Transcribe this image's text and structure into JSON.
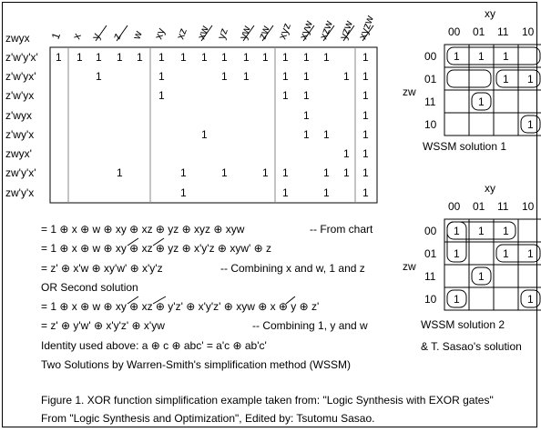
{
  "chart": {
    "corner_label": "zwyx",
    "columns": [
      "1",
      "x",
      "y",
      "z",
      "w",
      "xy",
      "xz",
      "xw",
      "yz",
      "yw",
      "zw",
      "xyz",
      "xyw",
      "xzw",
      "yzw",
      "xyzw"
    ],
    "struck_columns": [
      2,
      3,
      7,
      9,
      10,
      12,
      13,
      14,
      15
    ],
    "rows": [
      {
        "label": "z'w'y'x'",
        "cells": [
          0,
          1,
          2,
          3,
          4,
          5,
          6,
          7,
          8,
          9,
          10,
          11,
          12,
          13,
          15
        ]
      },
      {
        "label": "z'w'yx'",
        "cells": [
          2,
          5,
          8,
          9,
          11,
          12,
          14,
          15
        ]
      },
      {
        "label": "z'w'yx",
        "cells": [
          5,
          11,
          12,
          15
        ]
      },
      {
        "label": "z'wyx",
        "cells": [
          12,
          15
        ]
      },
      {
        "label": "z'wy'x",
        "cells": [
          7,
          12,
          13,
          15
        ]
      },
      {
        "label": "zwyx'",
        "cells": [
          14,
          15
        ]
      },
      {
        "label": "zw'y'x'",
        "cells": [
          3,
          6,
          8,
          10,
          11,
          13,
          14,
          15
        ]
      },
      {
        "label": "zw'y'x",
        "cells": [
          6,
          11,
          13,
          15
        ]
      }
    ],
    "cell_value": "1"
  },
  "lines": [
    {
      "text": "= 1 ⊕ x ⊕ w ⊕ xy ⊕ xz ⊕ yz ⊕ xyz ⊕ xyw",
      "note": "-- From chart"
    },
    {
      "text": "= 1 ⊕ x ⊕ w ⊕ xy ⊕ xz ⊕ yz ⊕ x'y'z ⊕ xyw' ⊕ z",
      "note": ""
    },
    {
      "text": "=  z' ⊕ x'w ⊕ xy'w' ⊕ x'y'z",
      "note": "-- Combining x and w, 1 and z"
    },
    {
      "text": "OR Second solution",
      "note": ""
    },
    {
      "text": "= 1 ⊕ x ⊕ w ⊕ xy ⊕ xz ⊕ y'z' ⊕ x'y'z' ⊕ xyw ⊕ x ⊕ y ⊕ z'",
      "note": ""
    },
    {
      "text": "=  z' ⊕ y'w' ⊕ x'y'z' ⊕ x'yw",
      "note": "-- Combining 1, y and w"
    },
    {
      "text": "Identity used above:   a ⊕ c ⊕ abc' = a'c ⊕ ab'c'",
      "note": ""
    },
    {
      "text": "Two Solutions by Warren-Smith's simplification method (WSSM)",
      "note": ""
    }
  ],
  "kmaps": [
    {
      "xy_label": "xy",
      "zw_label": "zw",
      "col_codes": [
        "00",
        "01",
        "11",
        "10"
      ],
      "row_codes": [
        "00",
        "01",
        "11",
        "10"
      ],
      "ones": [
        [
          0,
          0
        ],
        [
          0,
          1
        ],
        [
          0,
          2
        ],
        [
          1,
          2
        ],
        [
          1,
          3
        ],
        [
          2,
          1
        ],
        [
          3,
          3
        ]
      ],
      "caption": "WSSM solution 1",
      "caption2": ""
    },
    {
      "xy_label": "xy",
      "zw_label": "zw",
      "col_codes": [
        "00",
        "01",
        "11",
        "10"
      ],
      "row_codes": [
        "00",
        "01",
        "11",
        "10"
      ],
      "ones": [
        [
          0,
          0
        ],
        [
          0,
          1
        ],
        [
          0,
          2
        ],
        [
          1,
          0
        ],
        [
          1,
          2
        ],
        [
          1,
          3
        ],
        [
          2,
          1
        ],
        [
          3,
          0
        ],
        [
          3,
          3
        ]
      ],
      "caption": "WSSM solution 2",
      "caption2": "& T. Sasao's solution"
    }
  ],
  "figure_caption": {
    "line1": "Figure 1. XOR function simplification example taken from: \"Logic Synthesis with EXOR gates\"",
    "line2": "From \"Logic Synthesis and Optimization\", Edited by: Tsutomu Sasao."
  }
}
